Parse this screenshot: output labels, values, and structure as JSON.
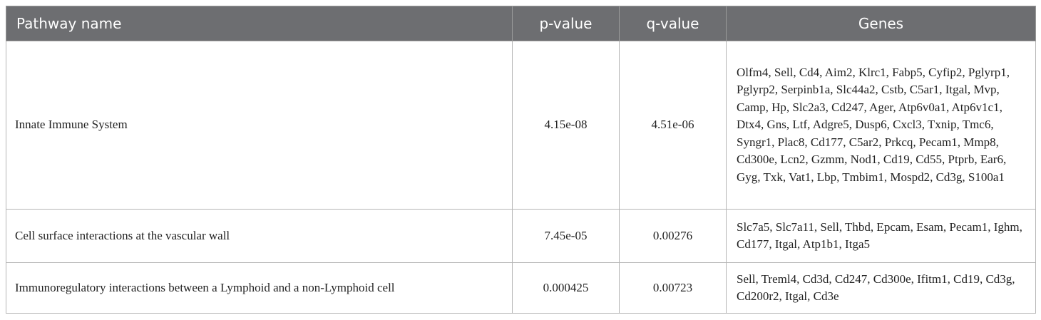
{
  "table": {
    "header": [
      "Pathway name",
      "p-value",
      "q-value",
      "Genes"
    ],
    "rows": [
      [
        "Innate Immune System",
        "4.15e-08",
        "4.51e-06",
        "Olfm4, Sell, Cd4, Aim2, Klrc1, Fabp5, Cyfip2, Pglyrp1, Pglyrp2, Serpinb1a, Slc44a2, Cstb, C5ar1, Itgal, Mvp, Camp, Hp, Slc2a3, Cd247, Ager, Atp6v0a1, Atp6v1c1, Dtx4, Gns, Ltf, Adgre5, Dusp6, Cxcl3, Txnip, Tmc6, Syngr1, Plac8, Cd177, C5ar2, Prkcq, Pecam1, Mmp8, Cd300e, Lcn2, Gzmm, Nod1, Cd19, Cd55, Ptprb, Ear6, Gyg, Txk, Vat1, Lbp, Tmbim1, Mospd2, Cd3g, S100a1"
      ],
      [
        "Cell surface interactions at the vascular wall",
        "7.45e-05",
        "0.00276",
        "Slc7a5, Slc7a11, Sell, Thbd, Epcam, Esam, Pecam1, Ighm, Cd177, Itgal, Atp1b1, Itga5"
      ],
      [
        "Immunoregulatory interactions between a Lymphoid and a non-Lymphoid cell",
        "0.000425",
        "0.00723",
        "Sell, Treml4, Cd3d, Cd247, Cd300e, Ifitm1, Cd19, Cd3g, Cd200r2, Itgal, Cd3e"
      ]
    ]
  }
}
